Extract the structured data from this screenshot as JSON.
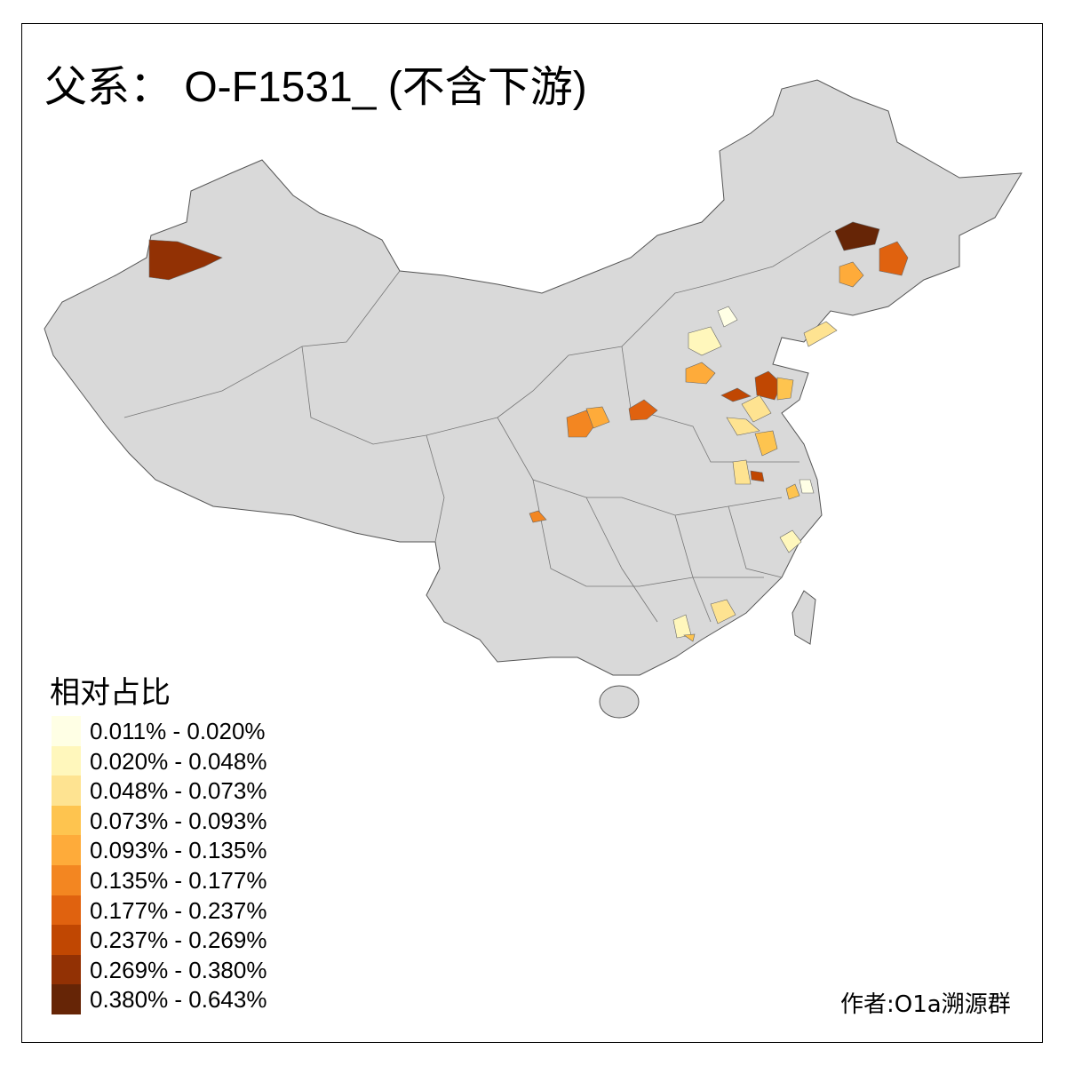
{
  "title": "父系： O-F1531_ (不含下游)",
  "legend": {
    "title": "相对占比",
    "items": [
      {
        "label": "0.011% - 0.020%",
        "color": "#FFFFE5"
      },
      {
        "label": "0.020% - 0.048%",
        "color": "#FFF7BC"
      },
      {
        "label": "0.048% - 0.073%",
        "color": "#FEE391"
      },
      {
        "label": "0.073% - 0.093%",
        "color": "#FEC44F"
      },
      {
        "label": "0.093% - 0.135%",
        "color": "#FEAB3A"
      },
      {
        "label": "0.135% - 0.177%",
        "color": "#F38621"
      },
      {
        "label": "0.177% - 0.237%",
        "color": "#E0620F"
      },
      {
        "label": "0.237% - 0.269%",
        "color": "#C04702"
      },
      {
        "label": "0.269% - 0.380%",
        "color": "#923104"
      },
      {
        "label": "0.380% - 0.643%",
        "color": "#662506"
      }
    ]
  },
  "map": {
    "base_color": "#D9D9D9",
    "border_color": "#555555"
  },
  "author": "作者:O1a溯源群"
}
